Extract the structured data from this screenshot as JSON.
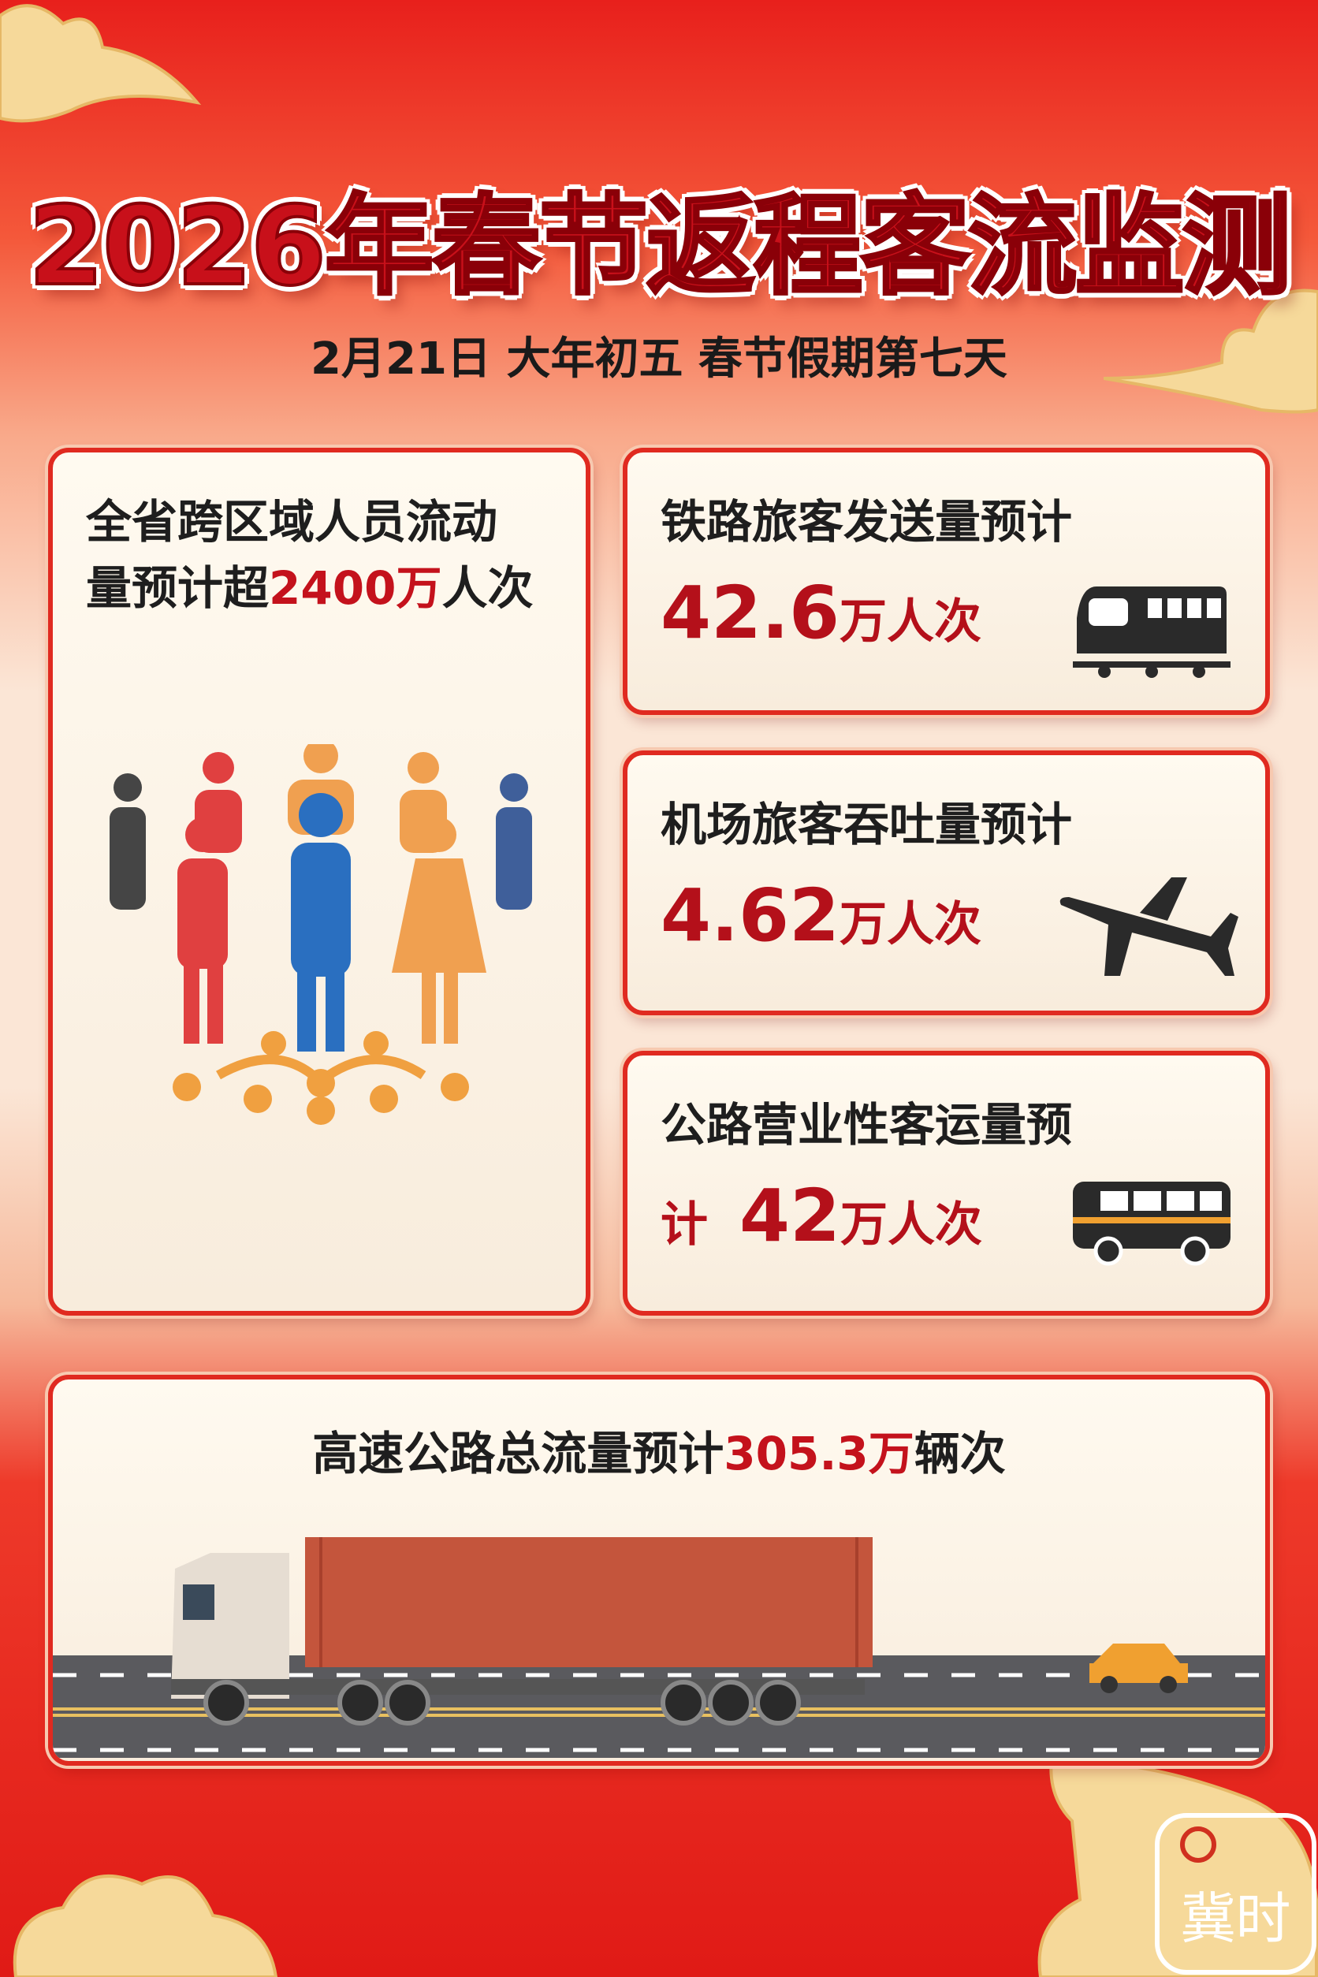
{
  "header": {
    "title": "2026年春节返程客流监测",
    "subtitle": "2月21日 大年初五 春节假期第七天"
  },
  "left_card": {
    "line1": "全省跨区域人员流动",
    "line2_prefix": "量预计超",
    "line2_value": "2400万",
    "line2_suffix": "人次",
    "icon": "people-crowd-icon"
  },
  "rail_card": {
    "label": "铁路旅客发送量预计",
    "value": "42.6",
    "unit": "万人次",
    "icon": "train-icon"
  },
  "air_card": {
    "label": "机场旅客吞吐量预计",
    "value": "4.62",
    "unit": "万人次",
    "icon": "airplane-icon"
  },
  "road_card": {
    "label": "公路营业性客运量预",
    "label_cont": "计",
    "value": "42",
    "unit": "万人次",
    "icon": "bus-icon"
  },
  "highway_card": {
    "prefix": "高速公路总流量预计",
    "value": "305.3万",
    "suffix": "辆次",
    "icon": "truck-icon"
  },
  "watermark": "冀时",
  "colors": {
    "accent_red": "#c4121c",
    "background_red": "#e8201c",
    "gold": "#f6d99a"
  }
}
